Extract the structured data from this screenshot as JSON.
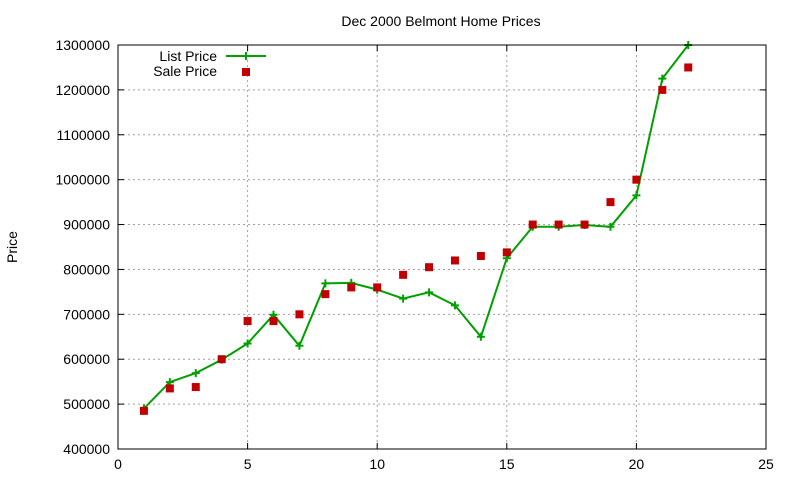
{
  "chart_data": {
    "type": "line",
    "title": "Dec 2000 Belmont Home Prices",
    "xlabel": "",
    "ylabel": "Price",
    "xlim": [
      0,
      25
    ],
    "ylim": [
      400000,
      1300000
    ],
    "x_ticks": [
      "0",
      "5",
      "10",
      "15",
      "20",
      "25"
    ],
    "y_ticks": [
      "400000",
      "500000",
      "600000",
      "700000",
      "800000",
      "900000",
      "1000000",
      "1100000",
      "1200000",
      "1300000"
    ],
    "grid": true,
    "legend_position": "top-left",
    "series": [
      {
        "name": "List Price",
        "style": "lines+points",
        "color": "#00a000",
        "x": [
          1,
          2,
          3,
          4,
          5,
          6,
          7,
          8,
          9,
          10,
          11,
          12,
          13,
          14,
          15,
          16,
          17,
          18,
          19,
          20,
          21,
          22
        ],
        "y": [
          490000,
          549000,
          569000,
          599000,
          635000,
          699000,
          630000,
          769000,
          770000,
          755000,
          735000,
          749000,
          720000,
          650000,
          825000,
          895000,
          895000,
          899000,
          895000,
          965000,
          1225000,
          1300000
        ]
      },
      {
        "name": "Sale Price",
        "style": "points",
        "color": "#c00000",
        "x": [
          1,
          2,
          3,
          4,
          5,
          6,
          7,
          8,
          9,
          10,
          11,
          12,
          13,
          14,
          15,
          16,
          17,
          18,
          19,
          20,
          21,
          22
        ],
        "y": [
          485000,
          535000,
          538000,
          600000,
          685000,
          685000,
          700000,
          745000,
          760000,
          760000,
          788000,
          805000,
          820000,
          830000,
          838000,
          900000,
          900000,
          900000,
          950000,
          1000000,
          1200000,
          1250000
        ]
      }
    ]
  }
}
